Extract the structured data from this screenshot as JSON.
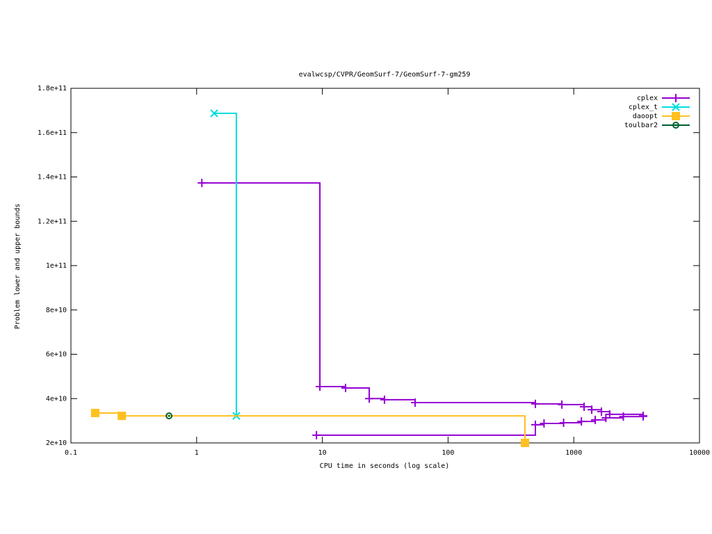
{
  "chart_data": {
    "type": "line",
    "title": "evalwcsp/CVPR/GeomSurf-7/GeomSurf-7-gm259",
    "xlabel": "CPU time in seconds (log scale)",
    "ylabel": "Problem lower and upper bounds",
    "xscale": "log",
    "steps": true,
    "legend": "upper right",
    "xlim": [
      0.1,
      10000
    ],
    "xticks": [
      0.1,
      1,
      10,
      100,
      1000,
      10000
    ],
    "ylim": [
      20000000000,
      180000000000
    ],
    "yticks": [
      {
        "value": 20000000000,
        "label": "2e+10"
      },
      {
        "value": 40000000000,
        "label": "4e+10"
      },
      {
        "value": 60000000000,
        "label": "6e+10"
      },
      {
        "value": 80000000000,
        "label": "8e+10"
      },
      {
        "value": 100000000000,
        "label": "1e+11"
      },
      {
        "value": 120000000000,
        "label": "1.2e+11"
      },
      {
        "value": 140000000000,
        "label": "1.4e+11"
      },
      {
        "value": 160000000000,
        "label": "1.6e+11"
      },
      {
        "value": 180000000000,
        "label": "1.8e+11"
      }
    ],
    "series": [
      {
        "name": "cplex",
        "color": "#9400d3",
        "marker": "plus",
        "x": [
          1.1,
          9.56,
          15.3,
          23.6,
          31.2,
          54.7,
          495,
          804,
          1208,
          1390,
          1660,
          1930,
          3565,
          null,
          8.98,
          495,
          580,
          830,
          1150,
          1480,
          1800,
          2480,
          3565
        ],
        "values": [
          137300000000,
          45400000000,
          44800000000,
          40000000000,
          39500000000,
          38200000000,
          37600000000,
          37300000000,
          36300000000,
          35000000000,
          34100000000,
          32900000000,
          32000000000,
          null,
          23500000000,
          28200000000,
          28800000000,
          29100000000,
          29700000000,
          30400000000,
          31300000000,
          31900000000,
          32200000000
        ]
      },
      {
        "name": "cplex_t",
        "color": "#00dede",
        "marker": "cross",
        "x": [
          1.38,
          2.07
        ],
        "values": [
          168700000000,
          32200000000
        ]
      },
      {
        "name": "daoopt",
        "color": "#ffc020",
        "marker": "square",
        "x": [
          0.156,
          0.254,
          409
        ],
        "values": [
          33500000000,
          32200000000,
          20000000000
        ]
      },
      {
        "name": "toulbar2",
        "color": "#006030",
        "marker": "circle",
        "x": [
          0.603
        ],
        "values": [
          32200000000
        ]
      }
    ]
  }
}
